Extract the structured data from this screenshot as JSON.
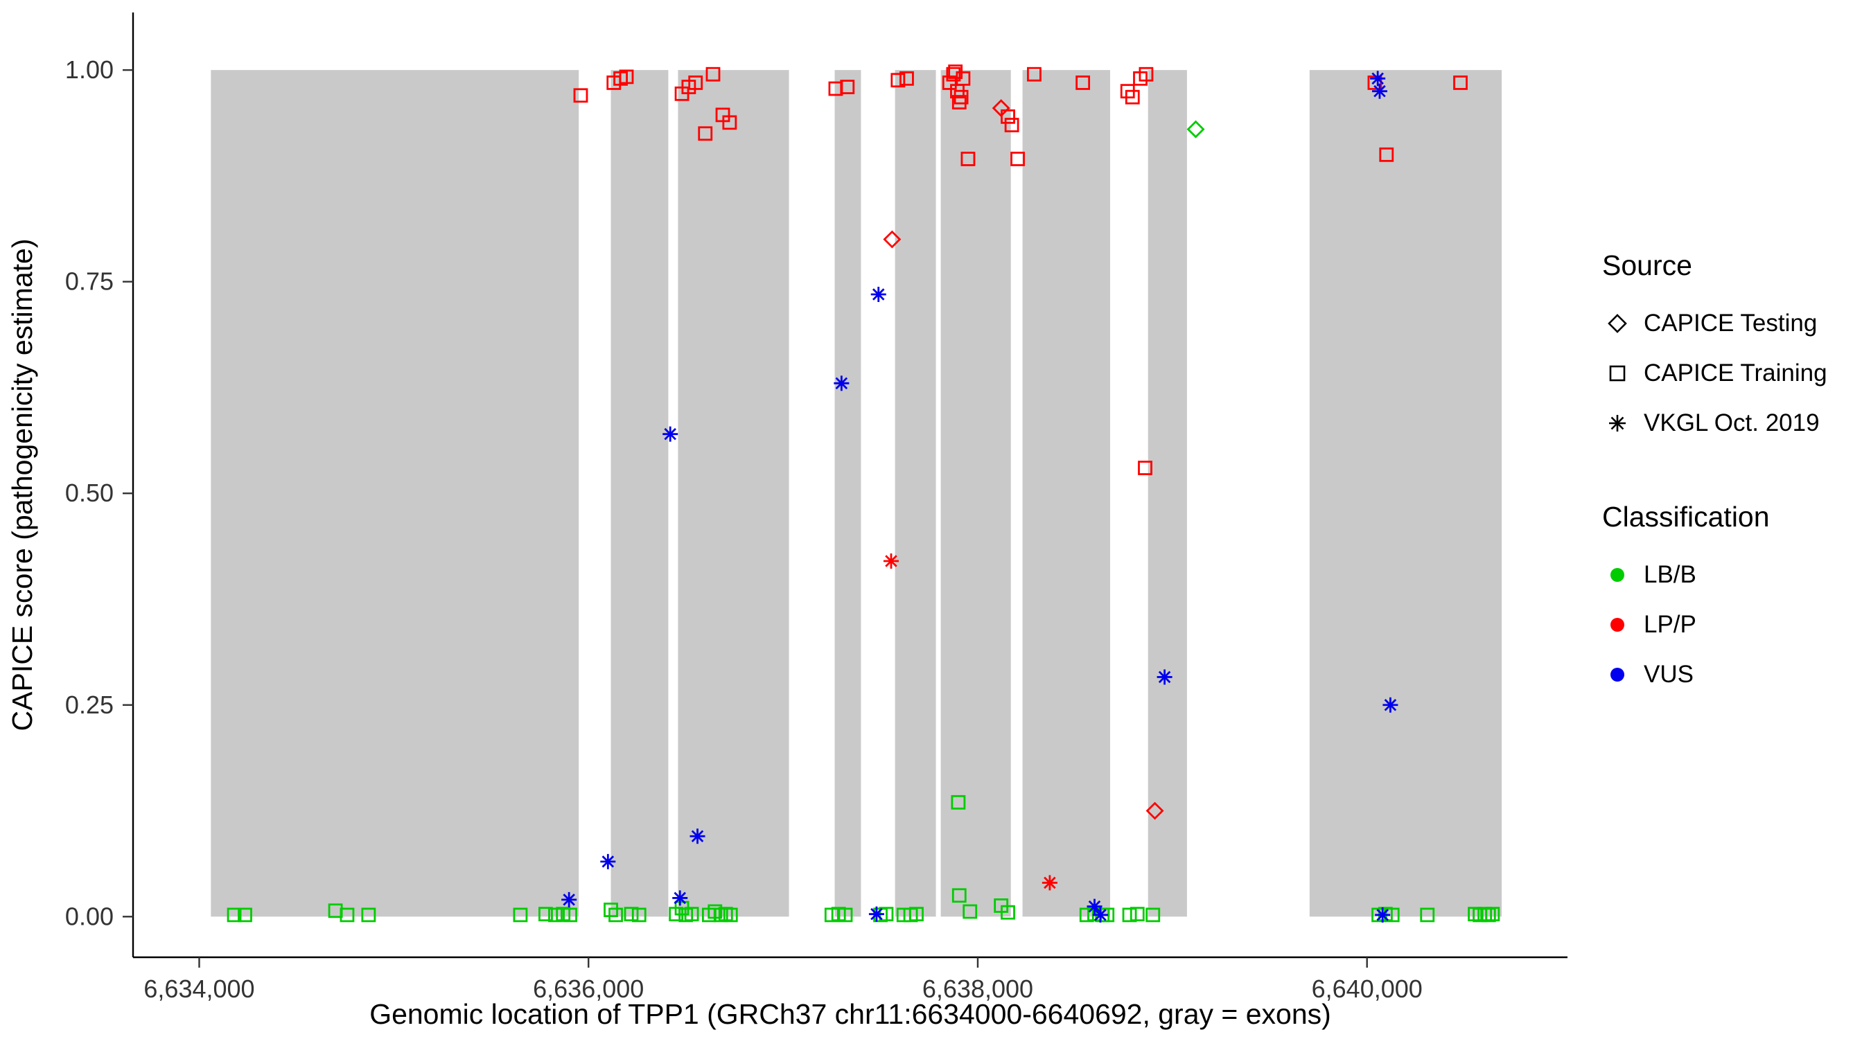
{
  "chart_data": {
    "type": "scatter",
    "title": "",
    "xlabel": "Genomic location of TPP1 (GRCh37 chr11:6634000-6640692, gray = exons)",
    "ylabel": "CAPICE score (pathogenicity estimate)",
    "x_domain": [
      6633660,
      6641030
    ],
    "y_domain": [
      -0.048,
      1.068
    ],
    "x_ticks": [
      {
        "v": 6634000,
        "label": "6,634,000"
      },
      {
        "v": 6636000,
        "label": "6,636,000"
      },
      {
        "v": 6638000,
        "label": "6,638,000"
      },
      {
        "v": 6640000,
        "label": "6,640,000"
      }
    ],
    "y_ticks": [
      {
        "v": 0.0,
        "label": "0.00"
      },
      {
        "v": 0.25,
        "label": "0.25"
      },
      {
        "v": 0.5,
        "label": "0.50"
      },
      {
        "v": 0.75,
        "label": "0.75"
      },
      {
        "v": 1.0,
        "label": "1.00"
      }
    ],
    "grid": false,
    "exon_color": "#c9c9c9",
    "exons": [
      [
        6634060,
        6635950
      ],
      [
        6636115,
        6636410
      ],
      [
        6636460,
        6637030
      ],
      [
        6637265,
        6637400
      ],
      [
        6637575,
        6637785
      ],
      [
        6637810,
        6638170
      ],
      [
        6638230,
        6638680
      ],
      [
        6638875,
        6639075
      ],
      [
        6639705,
        6640692
      ]
    ],
    "classes": {
      "LB/B": "#00cc00",
      "LP/P": "#ff0000",
      "VUS": "#0000ee"
    },
    "sources": {
      "testing": "CAPICE Testing",
      "training": "CAPICE Training",
      "vkgl": "VKGL Oct. 2019"
    },
    "series": [
      {
        "source": "training",
        "class": "LP/P",
        "points": [
          [
            6635960,
            0.97
          ],
          [
            6636130,
            0.985
          ],
          [
            6636165,
            0.99
          ],
          [
            6636195,
            0.992
          ],
          [
            6636480,
            0.972
          ],
          [
            6636515,
            0.98
          ],
          [
            6636550,
            0.985
          ],
          [
            6636640,
            0.995
          ],
          [
            6636600,
            0.925
          ],
          [
            6636690,
            0.947
          ],
          [
            6636725,
            0.938
          ],
          [
            6637270,
            0.978
          ],
          [
            6637330,
            0.98
          ],
          [
            6637590,
            0.988
          ],
          [
            6637635,
            0.99
          ],
          [
            6637855,
            0.985
          ],
          [
            6637875,
            0.995
          ],
          [
            6637885,
            0.998
          ],
          [
            6637895,
            0.975
          ],
          [
            6637905,
            0.962
          ],
          [
            6637915,
            0.968
          ],
          [
            6637925,
            0.99
          ],
          [
            6637950,
            0.895
          ],
          [
            6638155,
            0.945
          ],
          [
            6638175,
            0.935
          ],
          [
            6638205,
            0.895
          ],
          [
            6638290,
            0.995
          ],
          [
            6638540,
            0.985
          ],
          [
            6638770,
            0.975
          ],
          [
            6638795,
            0.968
          ],
          [
            6638835,
            0.99
          ],
          [
            6638865,
            0.995
          ],
          [
            6638860,
            0.53
          ],
          [
            6640040,
            0.985
          ],
          [
            6640100,
            0.9
          ],
          [
            6640480,
            0.985
          ]
        ]
      },
      {
        "source": "training",
        "class": "LB/B",
        "points": [
          [
            6634180,
            0.002
          ],
          [
            6634235,
            0.002
          ],
          [
            6634700,
            0.007
          ],
          [
            6634760,
            0.002
          ],
          [
            6634870,
            0.002
          ],
          [
            6635650,
            0.002
          ],
          [
            6635780,
            0.003
          ],
          [
            6635830,
            0.002
          ],
          [
            6635870,
            0.003
          ],
          [
            6635905,
            0.002
          ],
          [
            6636115,
            0.008
          ],
          [
            6636140,
            0.002
          ],
          [
            6636220,
            0.003
          ],
          [
            6636260,
            0.002
          ],
          [
            6636450,
            0.003
          ],
          [
            6636480,
            0.01
          ],
          [
            6636500,
            0.002
          ],
          [
            6636530,
            0.003
          ],
          [
            6636620,
            0.002
          ],
          [
            6636650,
            0.006
          ],
          [
            6636680,
            0.002
          ],
          [
            6636705,
            0.003
          ],
          [
            6636730,
            0.002
          ],
          [
            6637250,
            0.002
          ],
          [
            6637285,
            0.003
          ],
          [
            6637320,
            0.002
          ],
          [
            6637500,
            0.002
          ],
          [
            6637530,
            0.003
          ],
          [
            6637620,
            0.002
          ],
          [
            6637655,
            0.002
          ],
          [
            6637685,
            0.003
          ],
          [
            6637900,
            0.135
          ],
          [
            6637905,
            0.025
          ],
          [
            6637960,
            0.006
          ],
          [
            6638120,
            0.013
          ],
          [
            6638155,
            0.005
          ],
          [
            6638560,
            0.002
          ],
          [
            6638600,
            0.003
          ],
          [
            6638640,
            0.002
          ],
          [
            6638665,
            0.002
          ],
          [
            6638780,
            0.002
          ],
          [
            6638820,
            0.003
          ],
          [
            6638900,
            0.002
          ],
          [
            6640060,
            0.002
          ],
          [
            6640095,
            0.003
          ],
          [
            6640130,
            0.002
          ],
          [
            6640310,
            0.002
          ],
          [
            6640555,
            0.003
          ],
          [
            6640580,
            0.002
          ],
          [
            6640605,
            0.003
          ],
          [
            6640625,
            0.002
          ],
          [
            6640645,
            0.003
          ]
        ]
      },
      {
        "source": "testing",
        "class": "LP/P",
        "points": [
          [
            6637560,
            0.8
          ],
          [
            6638120,
            0.955
          ],
          [
            6638910,
            0.125
          ]
        ]
      },
      {
        "source": "testing",
        "class": "LB/B",
        "points": [
          [
            6639120,
            0.93
          ]
        ]
      },
      {
        "source": "vkgl",
        "class": "LP/P",
        "points": [
          [
            6637555,
            0.42
          ],
          [
            6638370,
            0.04
          ]
        ]
      },
      {
        "source": "vkgl",
        "class": "VUS",
        "points": [
          [
            6635900,
            0.02
          ],
          [
            6636100,
            0.065
          ],
          [
            6636420,
            0.57
          ],
          [
            6636470,
            0.022
          ],
          [
            6636560,
            0.095
          ],
          [
            6637300,
            0.63
          ],
          [
            6637490,
            0.735
          ],
          [
            6637480,
            0.003
          ],
          [
            6638600,
            0.012
          ],
          [
            6638630,
            0.002
          ],
          [
            6638960,
            0.283
          ],
          [
            6640055,
            0.99
          ],
          [
            6640065,
            0.975
          ],
          [
            6640080,
            0.002
          ],
          [
            6640120,
            0.25
          ]
        ]
      }
    ]
  },
  "legend": {
    "source": {
      "title": "Source",
      "items": [
        {
          "glyph": "diamond",
          "label": "CAPICE Testing"
        },
        {
          "glyph": "square",
          "label": "CAPICE Training"
        },
        {
          "glyph": "asterisk",
          "label": "VKGL Oct. 2019"
        }
      ]
    },
    "classification": {
      "title": "Classification",
      "items": [
        {
          "key": "LB/B",
          "label": "LB/B"
        },
        {
          "key": "LP/P",
          "label": "LP/P"
        },
        {
          "key": "VUS",
          "label": "VUS"
        }
      ]
    }
  }
}
